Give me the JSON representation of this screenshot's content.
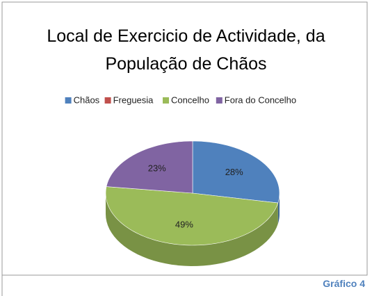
{
  "chart_data": {
    "type": "pie3d",
    "title": "Local de Exercicio de Actividade, da População de Chãos",
    "categories": [
      "Chãos",
      "Freguesia",
      "Concelho",
      "Fora do Concelho"
    ],
    "values": [
      28,
      0,
      49,
      23
    ],
    "value_labels": [
      "28%",
      null,
      "49%",
      "23%"
    ],
    "colors": [
      "#4f81bd",
      "#c0504d",
      "#9bbb59",
      "#8064a2"
    ],
    "legend": "top"
  },
  "caption": "Gráfico 4"
}
